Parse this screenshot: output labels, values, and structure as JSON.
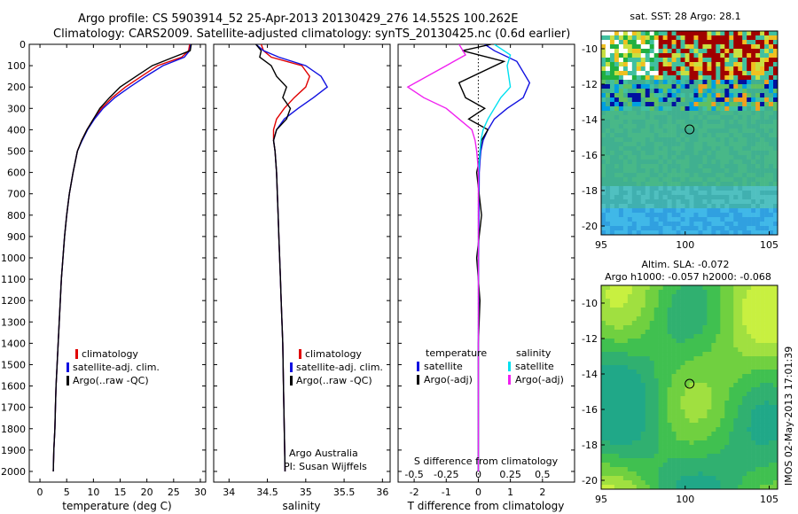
{
  "header": {
    "line1": "Argo profile: CS 5903914_52 25-Apr-2013 20130429_276 14.552S 100.262E",
    "line2": "Climatology: CARS2009. Satellite-adjusted climatology: synTS_20130425.nc (0.6d earlier)"
  },
  "colors": {
    "climatology": "#e00000",
    "satellite": "#1010e0",
    "argo": "#000000",
    "sat_salinity": "#00e0f0",
    "argo_salinity_adj": "#f020f0"
  },
  "chart_data": [
    {
      "type": "line",
      "id": "temperature",
      "xlabel": "temperature (deg C)",
      "ylabel": "",
      "xlim": [
        -2,
        31
      ],
      "ylim": [
        2050,
        0
      ],
      "xticks": [
        0,
        5,
        10,
        15,
        20,
        25,
        30
      ],
      "yticks": [
        0,
        100,
        200,
        300,
        400,
        500,
        600,
        700,
        800,
        900,
        1000,
        1100,
        1200,
        1300,
        1400,
        1500,
        1600,
        1700,
        1800,
        1900,
        2000
      ],
      "legend": [
        "climatology",
        "satellite-adj. clim.",
        "Argo(..raw -QC)"
      ],
      "series": [
        {
          "name": "climatology",
          "color": "#e00000",
          "x": [
            28.0,
            27.8,
            26.5,
            22.0,
            19.0,
            16.0,
            13.5,
            11.5,
            10.0,
            8.8,
            7.8,
            7.0,
            6.2,
            5.5,
            5.0,
            4.6,
            4.3,
            4.0,
            3.8,
            3.6,
            3.4,
            3.2,
            3.0,
            2.9,
            2.8,
            2.6,
            2.5
          ],
          "y": [
            0,
            30,
            60,
            100,
            150,
            200,
            250,
            300,
            350,
            400,
            450,
            500,
            600,
            700,
            800,
            900,
            1000,
            1100,
            1200,
            1300,
            1400,
            1500,
            1600,
            1700,
            1800,
            1900,
            2000
          ]
        },
        {
          "name": "satellite-adj. clim.",
          "color": "#1010e0",
          "x": [
            28.2,
            28.0,
            27.0,
            23.0,
            19.8,
            16.8,
            14.0,
            11.8,
            10.2,
            8.9,
            7.9,
            7.0,
            6.2,
            5.5,
            5.0,
            4.6,
            4.3,
            4.0,
            3.8,
            3.6,
            3.4,
            3.2,
            3.0,
            2.9,
            2.8,
            2.6,
            2.5
          ],
          "y": [
            0,
            30,
            60,
            100,
            150,
            200,
            250,
            300,
            350,
            400,
            450,
            500,
            600,
            700,
            800,
            900,
            1000,
            1100,
            1200,
            1300,
            1400,
            1500,
            1600,
            1700,
            1800,
            1900,
            2000
          ]
        },
        {
          "name": "Argo(..raw -QC)",
          "color": "#000000",
          "x": [
            28.3,
            28.1,
            25.0,
            21.0,
            18.0,
            15.0,
            13.0,
            11.2,
            10.0,
            8.8,
            7.8,
            7.0,
            6.2,
            5.5,
            5.0,
            4.6,
            4.3,
            4.0,
            3.8,
            3.6,
            3.4,
            3.2,
            3.0,
            2.9,
            2.8,
            2.6,
            2.5
          ],
          "y": [
            0,
            30,
            60,
            100,
            150,
            200,
            250,
            300,
            350,
            400,
            450,
            500,
            600,
            700,
            800,
            900,
            1000,
            1100,
            1200,
            1300,
            1400,
            1500,
            1600,
            1700,
            1800,
            1900,
            2000
          ]
        }
      ]
    },
    {
      "type": "line",
      "id": "salinity",
      "xlabel": "salinity",
      "xlim": [
        33.8,
        36.1
      ],
      "ylim": [
        2050,
        0
      ],
      "xticks": [
        34,
        34.5,
        35,
        35.5,
        36
      ],
      "legend": [
        "climatology",
        "satellite-adj. clim.",
        "Argo(..raw -QC)"
      ],
      "notes": [
        "Argo Australia",
        "PI: Susan Wijffels"
      ],
      "series": [
        {
          "name": "climatology",
          "color": "#e00000",
          "x": [
            34.42,
            34.45,
            34.55,
            34.95,
            35.05,
            35.0,
            34.85,
            34.72,
            34.62,
            34.58,
            34.58,
            34.6,
            34.62,
            34.64,
            34.65,
            34.66,
            34.67,
            34.68,
            34.69,
            34.7,
            34.71,
            34.72,
            34.73
          ],
          "y": [
            0,
            30,
            60,
            100,
            150,
            200,
            250,
            300,
            350,
            400,
            450,
            500,
            600,
            800,
            900,
            1000,
            1100,
            1200,
            1300,
            1400,
            1600,
            1800,
            2000
          ]
        },
        {
          "name": "satellite-adj. clim.",
          "color": "#1010e0",
          "x": [
            34.35,
            34.45,
            34.65,
            35.0,
            35.2,
            35.28,
            35.1,
            34.9,
            34.72,
            34.62,
            34.58,
            34.6,
            34.62,
            34.64,
            34.65,
            34.66,
            34.67,
            34.68,
            34.69,
            34.7,
            34.71,
            34.72,
            34.73
          ],
          "y": [
            0,
            30,
            60,
            100,
            150,
            200,
            250,
            300,
            350,
            400,
            450,
            500,
            600,
            800,
            900,
            1000,
            1100,
            1200,
            1300,
            1400,
            1600,
            1800,
            2000
          ]
        },
        {
          "name": "Argo(..raw -QC)",
          "color": "#000000",
          "x": [
            34.35,
            34.42,
            34.4,
            34.55,
            34.62,
            34.75,
            34.7,
            34.8,
            34.75,
            34.62,
            34.58,
            34.6,
            34.62,
            34.64,
            34.65,
            34.66,
            34.67,
            34.68,
            34.69,
            34.7,
            34.71,
            34.72,
            34.73
          ],
          "y": [
            0,
            30,
            60,
            100,
            150,
            200,
            250,
            300,
            350,
            400,
            450,
            500,
            600,
            800,
            900,
            1000,
            1100,
            1200,
            1300,
            1400,
            1600,
            1800,
            2000
          ]
        }
      ]
    },
    {
      "type": "line",
      "id": "difference",
      "xlabel": "T difference from climatology",
      "x2label": "S difference from climatology",
      "xlim": [
        -2.5,
        3.0
      ],
      "ylim": [
        2050,
        0
      ],
      "xticks": [
        -2,
        -1,
        0,
        1,
        2
      ],
      "x2ticks": [
        "-0.5",
        "-0.25",
        "0",
        "0.25",
        "0.5"
      ],
      "x2tick_pos": [
        -2,
        -1,
        0,
        1,
        2
      ],
      "legend_left_title": "temperature",
      "legend_right_title": "salinity",
      "legend_left": [
        "satellite",
        "Argo(-adj)"
      ],
      "legend_right": [
        "satellite",
        "Argo(-adj)"
      ],
      "series": [
        {
          "name": "temperature satellite",
          "color": "#1010e0",
          "x": [
            0.2,
            0.5,
            1.2,
            1.6,
            1.4,
            0.9,
            0.5,
            0.3,
            0.15,
            0.08,
            0.05,
            0.03,
            0.02,
            0.01,
            0.01,
            0.0,
            0.0,
            0.0,
            0.0,
            0.0
          ],
          "y": [
            0,
            30,
            80,
            180,
            250,
            300,
            350,
            400,
            450,
            500,
            550,
            600,
            800,
            1000,
            1200,
            1400,
            1600,
            1800,
            1900,
            2000
          ]
        },
        {
          "name": "temperature Argo(-adj)",
          "color": "#000000",
          "x": [
            0.4,
            -0.5,
            0.8,
            -0.6,
            -0.4,
            0.2,
            -0.3,
            0.3,
            0.1,
            0.05,
            0.02,
            -0.05,
            0.1,
            -0.05,
            0.05,
            0.0,
            0.0,
            0.0,
            0.0,
            0.0
          ],
          "y": [
            0,
            30,
            80,
            180,
            250,
            300,
            350,
            400,
            450,
            500,
            550,
            600,
            800,
            1000,
            1200,
            1400,
            1600,
            1800,
            1900,
            2000
          ]
        },
        {
          "name": "salinity satellite",
          "color": "#00e0f0",
          "x": [
            0.5,
            1.0,
            0.9,
            1.0,
            0.7,
            0.5,
            0.3,
            0.15,
            0.08,
            0.05,
            0.03,
            0.01,
            0.0,
            0.0,
            0.0,
            0.0,
            0.0
          ],
          "y": [
            0,
            50,
            100,
            200,
            250,
            300,
            350,
            400,
            450,
            500,
            550,
            600,
            800,
            1000,
            1400,
            1800,
            2000
          ]
        },
        {
          "name": "salinity Argo(-adj)",
          "color": "#f020f0",
          "x": [
            -0.6,
            -0.4,
            -1.0,
            -2.2,
            -1.7,
            -1.0,
            -0.6,
            -0.2,
            -0.1,
            -0.05,
            -0.02,
            0.0,
            0.0,
            0.0,
            0.0,
            0.0,
            0.0
          ],
          "y": [
            0,
            50,
            100,
            200,
            250,
            300,
            350,
            400,
            450,
            500,
            550,
            600,
            800,
            1000,
            1400,
            1800,
            2000
          ]
        }
      ]
    },
    {
      "type": "heatmap",
      "id": "sst-map",
      "title": "sat. SST: 28 Argo: 28.1",
      "xlim": [
        95,
        105.5
      ],
      "ylim": [
        -20.5,
        -9
      ],
      "xticks": [
        95,
        100,
        105
      ],
      "yticks": [
        -10,
        -12,
        -14,
        -16,
        -18,
        -20
      ],
      "marker": {
        "lon": 100.262,
        "lat": -14.552
      }
    },
    {
      "type": "heatmap",
      "id": "sla-map",
      "title": "Altim. SLA: -0.072",
      "subtitle": "Argo h1000: -0.057 h2000: -0.068",
      "xlim": [
        95,
        105.5
      ],
      "ylim": [
        -20.5,
        -9
      ],
      "xticks": [
        95,
        100,
        105
      ],
      "yticks": [
        -10,
        -12,
        -14,
        -16,
        -18,
        -20
      ],
      "marker": {
        "lon": 100.262,
        "lat": -14.552
      }
    }
  ],
  "footer": {
    "stamp": "IMOS 02-May-2013 17:01:39"
  }
}
